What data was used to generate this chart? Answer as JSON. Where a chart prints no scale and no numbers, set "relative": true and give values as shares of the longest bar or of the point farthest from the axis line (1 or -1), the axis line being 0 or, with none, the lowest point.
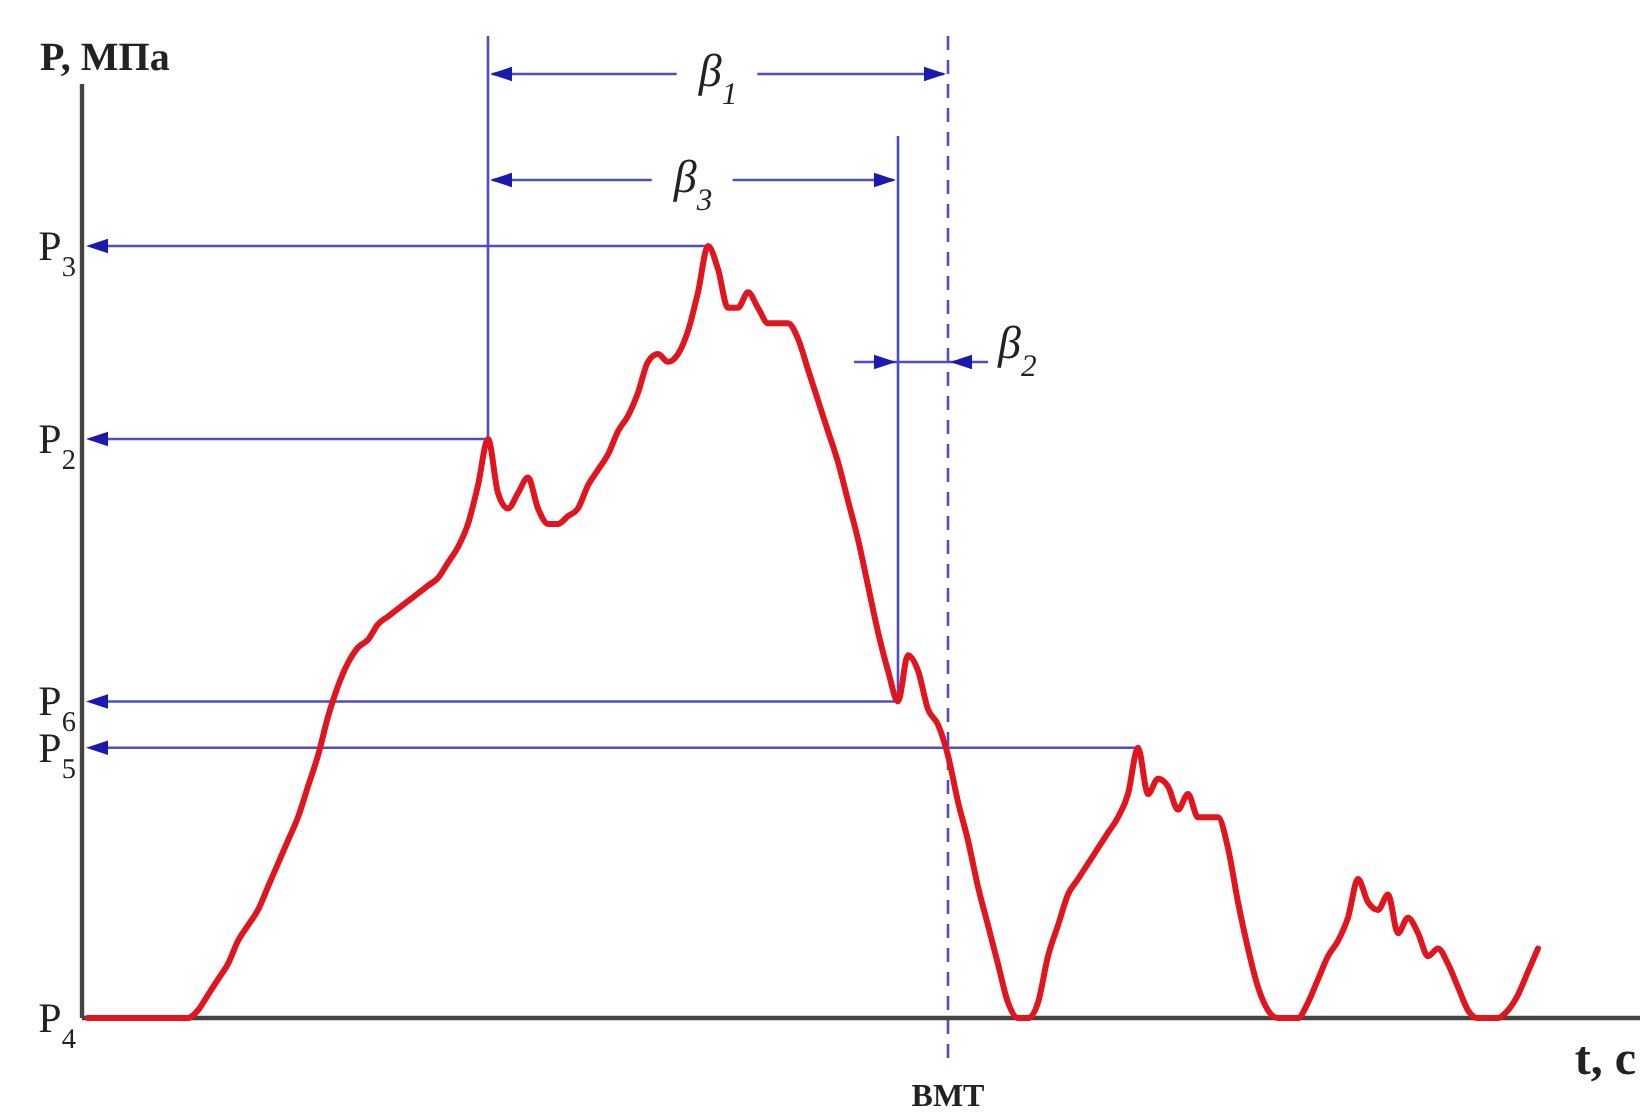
{
  "chart_data": {
    "type": "line",
    "relative": true,
    "xlabel": "t, с",
    "ylabel": "P, МПа",
    "categories": [
      null,
      null,
      null,
      null,
      null,
      null,
      null,
      null,
      null,
      null,
      null,
      null,
      null,
      null,
      null,
      null,
      null,
      null,
      null,
      null,
      null,
      null,
      null,
      null,
      null,
      null,
      null,
      null,
      null,
      null,
      null,
      null,
      null,
      null,
      null,
      null,
      null,
      null,
      null,
      null,
      null,
      null,
      null,
      null,
      null,
      null,
      null,
      null,
      null,
      null,
      null,
      null,
      null,
      null,
      null,
      null,
      null,
      null,
      null,
      null,
      null,
      null,
      null,
      null,
      null,
      null,
      null,
      null,
      null,
      null,
      null,
      null,
      null,
      null,
      null,
      null,
      null,
      null,
      null,
      null,
      null,
      null,
      null,
      null,
      null,
      null,
      null,
      null,
      null,
      null,
      null,
      null,
      null,
      null,
      null,
      null,
      null,
      null,
      null,
      null,
      null,
      null,
      null,
      null,
      null,
      null,
      null,
      null,
      null,
      null,
      null,
      null,
      null,
      null,
      null,
      null,
      null,
      null,
      null,
      null,
      null,
      null,
      null,
      null,
      null,
      null,
      null,
      null,
      null,
      null,
      null,
      null,
      null,
      null,
      null,
      null,
      null,
      null,
      null,
      null,
      null,
      null,
      null,
      null,
      null,
      null
    ],
    "values": [
      0,
      0,
      0,
      0,
      0,
      0,
      0,
      0,
      0,
      0,
      0,
      0.01,
      0.03,
      0.05,
      0.07,
      0.1,
      0.12,
      0.14,
      0.17,
      0.2,
      0.23,
      0.26,
      0.3,
      0.34,
      0.39,
      0.43,
      0.46,
      0.48,
      0.49,
      0.51,
      0.52,
      0.53,
      0.54,
      0.55,
      0.56,
      0.57,
      0.59,
      0.61,
      0.64,
      0.69,
      0.75,
      0.68,
      0.66,
      0.68,
      0.7,
      0.66,
      0.64,
      0.64,
      0.65,
      0.66,
      0.69,
      0.71,
      0.73,
      0.76,
      0.78,
      0.81,
      0.85,
      0.86,
      0.85,
      0.86,
      0.89,
      0.94,
      1,
      0.97,
      0.92,
      0.92,
      0.94,
      0.92,
      0.9,
      0.9,
      0.9,
      0.88,
      0.84,
      0.8,
      0.76,
      0.72,
      0.67,
      0.62,
      0.56,
      0.5,
      0.45,
      0.41,
      0.47,
      0.45,
      0.4,
      0.38,
      0.34,
      0.28,
      0.23,
      0.17,
      0.12,
      0.07,
      0.02,
      0,
      0,
      0.02,
      0.08,
      0.12,
      0.16,
      0.18,
      0.2,
      0.22,
      0.24,
      0.26,
      0.29,
      0.35,
      0.29,
      0.31,
      0.3,
      0.27,
      0.29,
      0.26,
      0.26,
      0.26,
      0.22,
      0.15,
      0.09,
      0.04,
      0.01,
      0,
      0,
      0,
      0.02,
      0.05,
      0.08,
      0.1,
      0.13,
      0.18,
      0.15,
      0.14,
      0.16,
      0.11,
      0.13,
      0.11,
      0.08,
      0.09,
      0.07,
      0.04,
      0.01,
      0,
      0,
      0,
      0.01,
      0.03,
      0.06,
      0.09
    ],
    "color": "#e0151d",
    "ref_lines": [
      {
        "axis": "y",
        "value": 1,
        "label": "P$_{3}$",
        "color": "#4d4dc9"
      },
      {
        "axis": "y",
        "value": 0.75,
        "label": "P$_{2}$",
        "color": "#4d4dc9"
      },
      {
        "axis": "y",
        "value": 0.41,
        "label": "P$_{6}$",
        "color": "#4d4dc9"
      },
      {
        "axis": "y",
        "value": 0.35,
        "label": "P$_{5}$",
        "color": "#4d4dc9"
      }
    ],
    "annotations": [
      "P$_{4}$",
      "β$_{1}$",
      "β$_{3}$",
      "β$_{2}$",
      "ВМТ"
    ]
  }
}
